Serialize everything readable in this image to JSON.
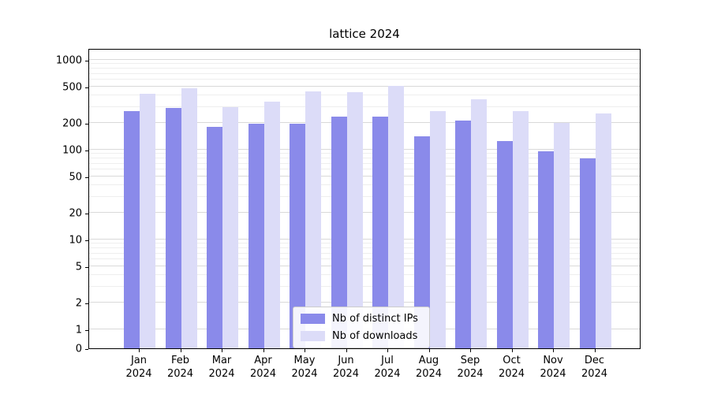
{
  "chart_data": {
    "type": "bar",
    "title": "lattice 2024",
    "yscale": "symlog",
    "grid": true,
    "legend_position": "lower center",
    "categories": [
      "Jan 2024",
      "Feb 2024",
      "Mar 2024",
      "Apr 2024",
      "May 2024",
      "Jun 2024",
      "Jul 2024",
      "Aug 2024",
      "Sep 2024",
      "Oct 2024",
      "Nov 2024",
      "Dec 2024"
    ],
    "series": [
      {
        "name": "Nb of distinct IPs",
        "color": "#8a8aea",
        "values": [
          270,
          290,
          180,
          195,
          195,
          235,
          235,
          140,
          210,
          125,
          97,
          80
        ]
      },
      {
        "name": "Nb of downloads",
        "color": "#dcdcf8",
        "values": [
          420,
          480,
          300,
          345,
          450,
          435,
          510,
          270,
          365,
          270,
          200,
          255
        ]
      }
    ],
    "yticks": [
      0,
      1,
      2,
      5,
      10,
      20,
      50,
      100,
      200,
      500,
      1000
    ],
    "ylim": [
      0,
      1350
    ]
  }
}
